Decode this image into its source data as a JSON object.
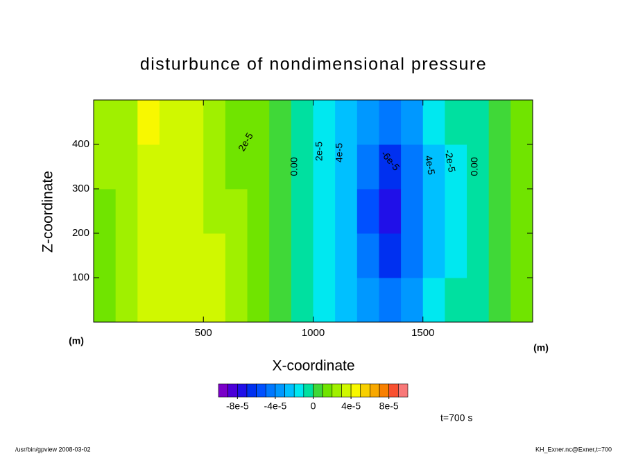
{
  "chart_data": {
    "type": "contour",
    "title": "disturbunce of nondimensional pressure",
    "xlabel": "X-coordinate",
    "ylabel": "Z-coordinate",
    "x_unit": "(m)",
    "y_unit": "(m)",
    "time_label": "t=700 s",
    "footer_left": "/usr/bin/gpview   2008-03-02",
    "footer_right": "KH_Exner.nc@Exner,t=700",
    "xlim": [
      0,
      2000
    ],
    "xticks": [
      500,
      1000,
      1500
    ],
    "ylim": [
      0,
      500
    ],
    "yticks": [
      100,
      200,
      300,
      400
    ],
    "x": [
      50,
      150,
      250,
      350,
      450,
      550,
      650,
      750,
      850,
      950,
      1050,
      1150,
      1250,
      1350,
      1450,
      1550,
      1650,
      1750,
      1850,
      1950
    ],
    "z": [
      50,
      150,
      250,
      350,
      450
    ],
    "values": [
      [
        1.5e-05,
        2.5e-05,
        3.5e-05,
        3.5e-05,
        3.5e-05,
        3e-05,
        2.5e-05,
        1e-05,
        5e-06,
        -5e-06,
        -1.5e-05,
        -2.5e-05,
        -4e-05,
        -5e-05,
        -3.5e-05,
        -2e-05,
        -1e-05,
        -5e-06,
        5e-06,
        1e-05
      ],
      [
        1.5e-05,
        2.5e-05,
        3.5e-05,
        3.5e-05,
        3.5e-05,
        3e-05,
        2e-05,
        1e-05,
        5e-06,
        -5e-06,
        -1.5e-05,
        -3e-05,
        -5e-05,
        -6.5e-05,
        -4.5e-05,
        -2.5e-05,
        -1.5e-05,
        -5e-06,
        5e-06,
        1e-05
      ],
      [
        1.5e-05,
        2.5e-05,
        3.5e-05,
        3.5e-05,
        3e-05,
        2.5e-05,
        2e-05,
        1e-05,
        5e-06,
        -5e-06,
        -1.5e-05,
        -3e-05,
        -5.5e-05,
        -7.5e-05,
        -5e-05,
        -2.5e-05,
        -1.5e-05,
        -5e-06,
        5e-06,
        1e-05
      ],
      [
        2e-05,
        2.5e-05,
        3.5e-05,
        3.5e-05,
        3e-05,
        2.5e-05,
        1.5e-05,
        1e-05,
        5e-06,
        -5e-06,
        -1.5e-05,
        -3e-05,
        -5e-05,
        -6.5e-05,
        -4.5e-05,
        -2.5e-05,
        -1.5e-05,
        -5e-06,
        5e-06,
        1.5e-05
      ],
      [
        2e-05,
        2.5e-05,
        4e-05,
        3.5e-05,
        3e-05,
        2.5e-05,
        1.5e-05,
        1e-05,
        5e-06,
        -5e-06,
        -1.5e-05,
        -2.5e-05,
        -4e-05,
        -5e-05,
        -3.5e-05,
        -2e-05,
        -1e-05,
        -5e-06,
        5e-06,
        1.5e-05
      ]
    ],
    "contour_labels": [
      "2e-5",
      "0.00",
      "2e-5",
      "4e-5",
      "-6e-5",
      "4e-5",
      "-2e-5",
      "0.00"
    ],
    "colorbar": {
      "levels": [
        -0.0001,
        -9e-05,
        -8e-05,
        -7e-05,
        -6e-05,
        -5e-05,
        -4e-05,
        -3e-05,
        -2e-05,
        -1e-05,
        0,
        1e-05,
        2e-05,
        3e-05,
        4e-05,
        5e-05,
        6e-05,
        7e-05,
        8e-05,
        9e-05,
        0.0001
      ],
      "colors": [
        "#7a00c8",
        "#4b00d8",
        "#2010e8",
        "#0030f0",
        "#0050ff",
        "#0078ff",
        "#0098ff",
        "#00c0ff",
        "#00e8f0",
        "#00e0a0",
        "#40d838",
        "#70e400",
        "#a0f000",
        "#d0f800",
        "#f8f800",
        "#f8d000",
        "#f8a800",
        "#f88000",
        "#f85030",
        "#f87878"
      ],
      "ticks": [
        {
          "value": -8e-05,
          "label": "-8e-5"
        },
        {
          "value": -4e-05,
          "label": "-4e-5"
        },
        0,
        {
          "value": 4e-05,
          "label": "4e-5"
        },
        {
          "value": 8e-05,
          "label": "8e-5"
        }
      ]
    }
  }
}
